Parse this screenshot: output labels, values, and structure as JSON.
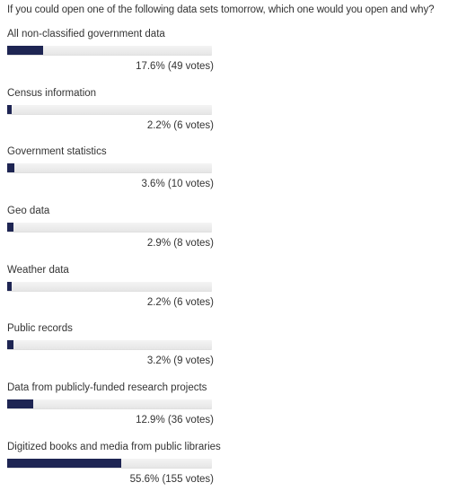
{
  "poll": {
    "question": "If you could open one of the following data sets tomorrow, which one would you open and why?",
    "options": [
      {
        "label": "All non-classified government data",
        "percent": 17.6,
        "result_text": "17.6% (49 votes)"
      },
      {
        "label": "Census information",
        "percent": 2.2,
        "result_text": "2.2% (6 votes)"
      },
      {
        "label": "Government statistics",
        "percent": 3.6,
        "result_text": "3.6% (10 votes)"
      },
      {
        "label": "Geo data",
        "percent": 2.9,
        "result_text": "2.9% (8 votes)"
      },
      {
        "label": "Weather data",
        "percent": 2.2,
        "result_text": "2.2% (6 votes)"
      },
      {
        "label": "Public records",
        "percent": 3.2,
        "result_text": "3.2% (9 votes)"
      },
      {
        "label": "Data from publicly-funded research projects",
        "percent": 12.9,
        "result_text": "12.9% (36 votes)"
      },
      {
        "label": "Digitized books and media from public libraries",
        "percent": 55.6,
        "result_text": "55.6% (155 votes)"
      }
    ]
  },
  "colors": {
    "bar_fill": "#1e2553",
    "bar_track": "#eeeeee",
    "text": "#333333"
  }
}
